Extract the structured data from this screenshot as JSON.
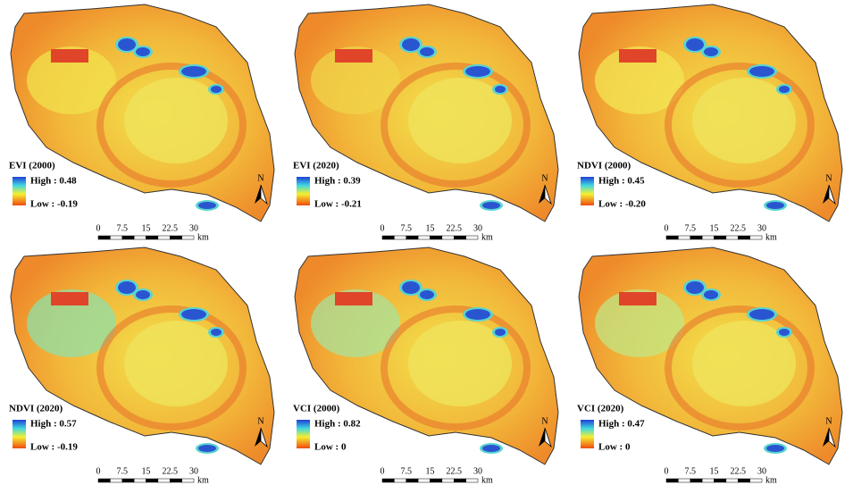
{
  "panels": [
    {
      "title": "EVI (2000)",
      "high": "High : 0.48",
      "low": "Low : -0.19"
    },
    {
      "title": "EVI (2020)",
      "high": "High : 0.39",
      "low": "Low : -0.21"
    },
    {
      "title": "NDVI (2000)",
      "high": "High : 0.45",
      "low": "Low : -0.20"
    },
    {
      "title": "NDVI (2020)",
      "high": "High : 0.57",
      "low": "Low : -0.19"
    },
    {
      "title": "VCI (2000)",
      "high": "High : 0.82",
      "low": "Low : 0"
    },
    {
      "title": "VCI (2020)",
      "high": "High : 0.47",
      "low": "Low : 0"
    }
  ],
  "scale_bar": {
    "ticks": [
      "0",
      "7.5",
      "15",
      "22.5",
      "30"
    ],
    "unit": "km"
  },
  "north": "N"
}
